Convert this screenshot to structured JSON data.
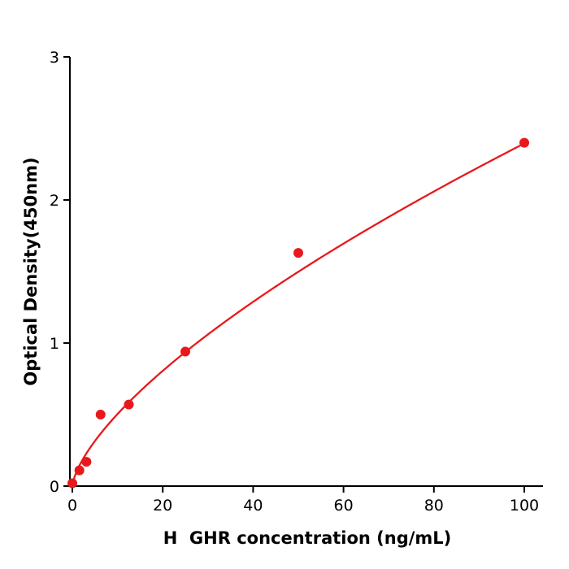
{
  "chart_data": {
    "type": "scatter",
    "title": "",
    "xlabel": "H  GHR concentration (ng/mL)",
    "ylabel": "Optical Density(450nm)",
    "x": [
      0,
      1.56,
      3.12,
      6.25,
      12.5,
      25,
      50,
      100
    ],
    "y": [
      0.02,
      0.11,
      0.17,
      0.5,
      0.57,
      0.94,
      1.63,
      2.4
    ],
    "xlim": [
      0,
      104
    ],
    "ylim": [
      0,
      3
    ],
    "xticks": [
      0,
      20,
      40,
      60,
      80,
      100
    ],
    "yticks": [
      0,
      1,
      2,
      3
    ],
    "grid": false,
    "legend_position": "none",
    "marker_color": "#e8191c",
    "curve_color": "#e8191c",
    "axis_color": "#000000",
    "fit": {
      "type": "power",
      "a": 0.106,
      "b": 0.677,
      "x_start": 0,
      "x_end": 100
    }
  }
}
